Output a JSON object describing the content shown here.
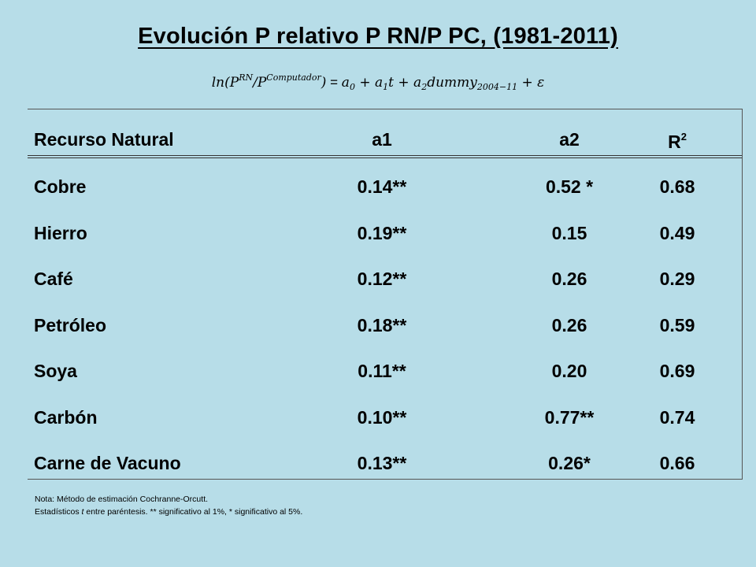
{
  "title": "Evolución P relativo P RN/P PC, (1981-2011)",
  "formula": {
    "lhs_ln": "ln(P",
    "lhs_sup_rn": "RN",
    "lhs_slash": "/P",
    "lhs_sup_comp": "Computador",
    "lhs_close": ")",
    "equals": " = ",
    "a0": "a",
    "a0_sub": "0",
    "plus1": " + ",
    "a1": "a",
    "a1_sub": "1",
    "t": "t",
    "plus2": " + ",
    "a2": "a",
    "a2_sub": "2",
    "dummy": "dummy",
    "dummy_sub": "2004−11",
    "plus3": " + ",
    "eps": "ε"
  },
  "table": {
    "headers": {
      "col0": "Recurso Natural",
      "col1": "a1",
      "col2": "a2",
      "col3_base": "R",
      "col3_sup": "2"
    },
    "rows": [
      {
        "name": "Cobre",
        "a1": "0.14**",
        "a2": "0.52 *",
        "r2": "0.68"
      },
      {
        "name": "Hierro",
        "a1": "0.19**",
        "a2": "0.15",
        "r2": "0.49"
      },
      {
        "name": "Café",
        "a1": "0.12**",
        "a2": "0.26",
        "r2": "0.29"
      },
      {
        "name": "Petróleo",
        "a1": "0.18**",
        "a2": "0.26",
        "r2": "0.59"
      },
      {
        "name": "Soya",
        "a1": "0.11**",
        "a2": "0.20",
        "r2": "0.69"
      },
      {
        "name": "Carbón",
        "a1": "0.10**",
        "a2": "0.77**",
        "r2": "0.74"
      },
      {
        "name": "Carne de Vacuno",
        "a1": "0.13**",
        "a2": "0.26*",
        "r2": "0.66"
      }
    ]
  },
  "note": {
    "line1": "Nota: Método de estimación Cochranne-Orcutt.",
    "line2_pre": "Estadísticos ",
    "line2_t": "t",
    "line2_post": " entre paréntesis. ** significativo al 1%, * significativo al 5%."
  }
}
